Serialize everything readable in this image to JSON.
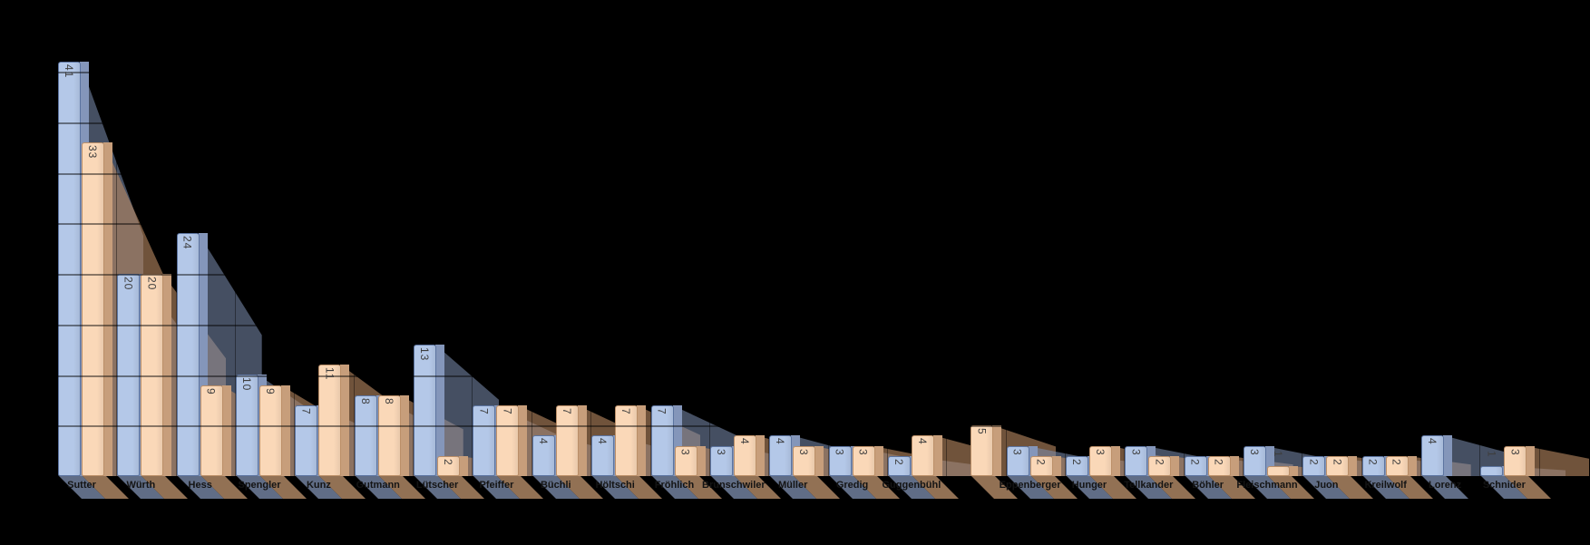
{
  "chart_data": {
    "type": "bar",
    "title": "",
    "xlabel": "",
    "ylabel": "",
    "legend": "none",
    "background_color": "#000000",
    "ylim": [
      0,
      45
    ],
    "gridline_interval": 5,
    "grid": true,
    "value_labels_shown": true,
    "value_label_rotation_deg": 90,
    "categories": [
      "Sutter",
      "Würth",
      "Hess",
      "Spengler",
      "Kunz",
      "Gutmann",
      "Lütscher",
      "Pfeiffer",
      "Büchli",
      "Höltschi",
      "Fröhlich",
      "Brunschwiler",
      "Müller",
      "Gredig",
      "Guggenbühl",
      "",
      "Eppenberger",
      "Hunger",
      "Tellkander",
      "Böhler",
      "Fleischmann",
      "Juon",
      "Kreilwolf",
      "Lorenz",
      "Schnider"
    ],
    "series": [
      {
        "name": "blue",
        "color": "#b4c8e8",
        "side_color": "#8496ba",
        "shadow_color": "rgba(126,143,178,0.55)",
        "floor_color": "rgba(120,136,168,0.80)",
        "border_color": "#5c74a0",
        "values": [
          41,
          20,
          24,
          10,
          7,
          8,
          13,
          7,
          4,
          4,
          7,
          3,
          4,
          3,
          2,
          0,
          3,
          2,
          3,
          2,
          3,
          2,
          2,
          4,
          1
        ]
      },
      {
        "name": "orange",
        "color": "#fad8b8",
        "side_color": "#c79e7b",
        "shadow_color": "rgba(186,139,99,0.60)",
        "floor_color": "rgba(172,133,99,0.85)",
        "border_color": "#bb8f68",
        "values": [
          33,
          20,
          9,
          9,
          11,
          8,
          2,
          7,
          7,
          7,
          3,
          4,
          3,
          3,
          4,
          5,
          2,
          3,
          2,
          2,
          1,
          2,
          2,
          0,
          3
        ]
      }
    ]
  }
}
